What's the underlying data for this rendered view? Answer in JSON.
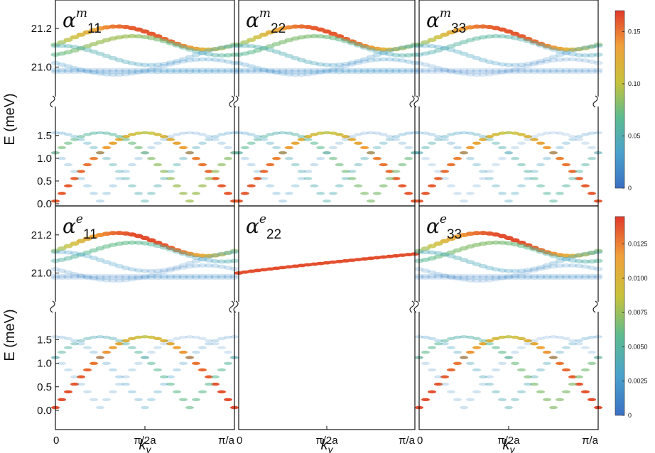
{
  "figure": {
    "colorbar_top": {
      "min": 0,
      "max": 0.17,
      "ticks": [
        "0",
        "0.05",
        "0.10",
        "0.15"
      ]
    },
    "colorbar_bottom": {
      "min": 0,
      "max": 0.0145,
      "ticks": [
        "0",
        "0.0025",
        "0.0050",
        "0.0075",
        "0.0100",
        "0.0125"
      ]
    },
    "colormap": [
      "#3b6fc4",
      "#4aa2cc",
      "#5cbc8f",
      "#c8c23a",
      "#f0a13a",
      "#e03a2b"
    ]
  },
  "chart_data": [
    {
      "type": "scatter",
      "title": "α^m_11",
      "title_main": "α",
      "title_sup": "m",
      "title_sub": "11",
      "xlabel": "",
      "ylabel": "E (meV)",
      "xlim": [
        0,
        1
      ],
      "x_ticks": [
        "0",
        "π/2a",
        "π/a"
      ],
      "upper_ylim": [
        20.95,
        21.27
      ],
      "lower_ylim": [
        0,
        1.7
      ],
      "upper_yticks": [
        "21.0",
        "21.2"
      ],
      "lower_yticks": [
        "0.0",
        "0.5",
        "1.0",
        "1.5"
      ],
      "color_scale": "top",
      "weights_by_branch": [
        0.16,
        0.09,
        0.05,
        0.03
      ]
    },
    {
      "type": "scatter",
      "title": "α^m_22",
      "title_main": "α",
      "title_sup": "m",
      "title_sub": "22",
      "xlabel": "",
      "ylabel": "",
      "xlim": [
        0,
        1
      ],
      "x_ticks": [
        "0",
        "π/2a",
        "π/a"
      ],
      "upper_ylim": [
        20.95,
        21.27
      ],
      "lower_ylim": [
        0,
        1.7
      ],
      "color_scale": "top",
      "weights_by_branch": [
        0.16,
        0.08,
        0.05,
        0.03
      ]
    },
    {
      "type": "scatter",
      "title": "α^m_33",
      "title_main": "α",
      "title_sup": "m",
      "title_sub": "33",
      "xlabel": "",
      "ylabel": "",
      "xlim": [
        0,
        1
      ],
      "x_ticks": [
        "0",
        "π/2a",
        "π/a"
      ],
      "upper_ylim": [
        20.95,
        21.27
      ],
      "lower_ylim": [
        0,
        1.7
      ],
      "color_scale": "top",
      "weights_by_branch": [
        0.16,
        0.06,
        0.04,
        0.02
      ]
    },
    {
      "type": "scatter",
      "title": "α^e_11",
      "title_main": "α",
      "title_sup": "e",
      "title_sub": "11",
      "xlabel": "k_y",
      "ylabel": "E (meV)",
      "xlim": [
        0,
        1
      ],
      "x_ticks": [
        "0",
        "π/2a",
        "π/a"
      ],
      "upper_ylim": [
        20.95,
        21.27
      ],
      "lower_ylim": [
        0,
        1.7
      ],
      "upper_yticks": [
        "21.0",
        "21.2"
      ],
      "lower_yticks": [
        "0.0",
        "0.5",
        "1.0",
        "1.5"
      ],
      "color_scale": "bottom",
      "weights_by_branch": [
        0.014,
        0.006,
        0.003,
        0.002
      ]
    },
    {
      "type": "scatter",
      "title": "α^e_22",
      "title_main": "α",
      "title_sup": "e",
      "title_sub": "22",
      "xlabel": "k_y",
      "ylabel": "",
      "xlim": [
        0,
        1
      ],
      "x_ticks": [
        "0",
        "π/2a",
        "π/a"
      ],
      "upper_ylim": [
        20.95,
        21.27
      ],
      "lower_ylim": [
        0,
        1.7
      ],
      "color_scale": "bottom",
      "weights_by_branch": [
        0.014,
        0,
        0,
        0
      ]
    },
    {
      "type": "scatter",
      "title": "α^e_33",
      "title_main": "α",
      "title_sup": "e",
      "title_sub": "33",
      "xlabel": "k_y",
      "ylabel": "",
      "xlim": [
        0,
        1
      ],
      "x_ticks": [
        "0",
        "π/2a",
        "π/a"
      ],
      "upper_ylim": [
        20.95,
        21.27
      ],
      "lower_ylim": [
        0,
        1.7
      ],
      "color_scale": "bottom",
      "weights_by_branch": [
        0.014,
        0.007,
        0.004,
        0.002
      ]
    }
  ],
  "labels": {
    "ylabel": "E (meV)",
    "xlabel_k": "k",
    "xlabel_sub": "y"
  }
}
